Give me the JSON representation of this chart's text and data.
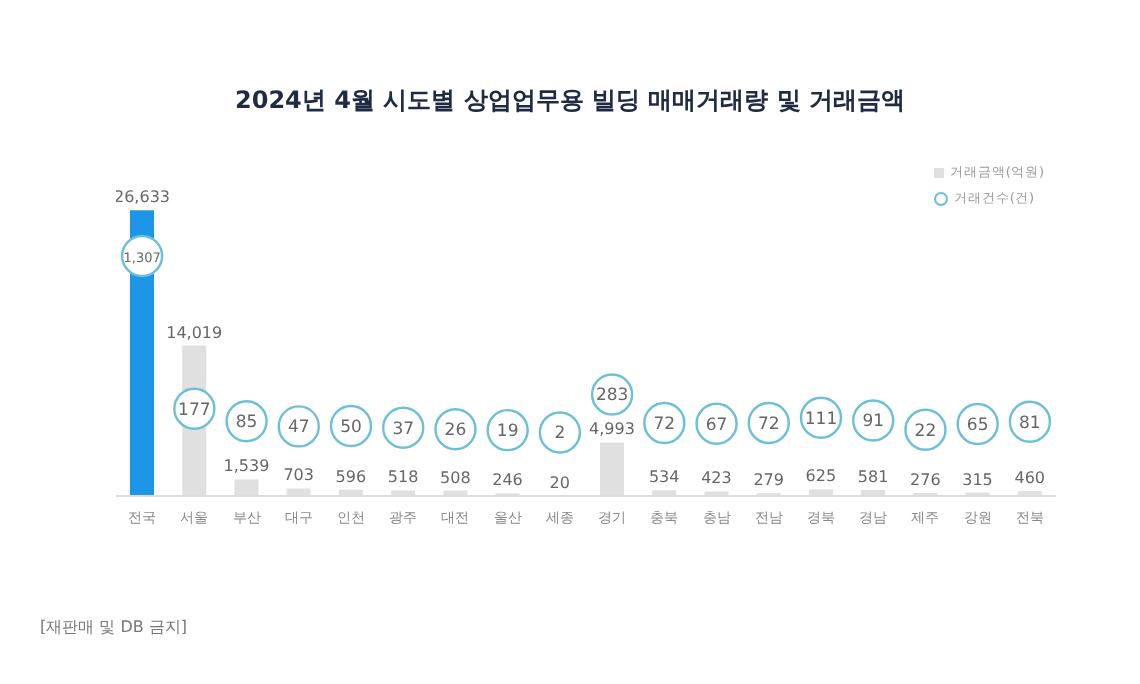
{
  "chart_data": {
    "type": "bar",
    "title": "2024년 4월 시도별 상업업무용 빌딩 매매거래량 및 거래금액",
    "categories": [
      "전국",
      "서울",
      "부산",
      "대구",
      "인천",
      "광주",
      "대전",
      "울산",
      "세종",
      "경기",
      "충북",
      "충남",
      "전남",
      "경북",
      "경남",
      "제주",
      "강원",
      "전북"
    ],
    "series": [
      {
        "name": "거래금액(억원)",
        "color": "#e0e0e0",
        "colors": [
          "#1e96e8",
          "#e0e0e0",
          "#e0e0e0",
          "#e0e0e0",
          "#e0e0e0",
          "#e0e0e0",
          "#e0e0e0",
          "#e0e0e0",
          "#e0e0e0",
          "#e0e0e0",
          "#e0e0e0",
          "#e0e0e0",
          "#e0e0e0",
          "#e0e0e0",
          "#e0e0e0",
          "#e0e0e0",
          "#e0e0e0",
          "#e0e0e0"
        ],
        "values": [
          26633,
          14019,
          1539,
          703,
          596,
          518,
          508,
          246,
          20,
          4993,
          534,
          423,
          279,
          625,
          581,
          276,
          315,
          460
        ],
        "value_labels": [
          "26,633",
          "14,019",
          "1,539",
          "703",
          "596",
          "518",
          "508",
          "246",
          "20",
          "4,993",
          "534",
          "423",
          "279",
          "625",
          "581",
          "276",
          "315",
          "460"
        ]
      },
      {
        "name": "거래건수(건)",
        "type": "scatter",
        "axis": "y2",
        "color": "#6cbfd9",
        "values": [
          1307,
          177,
          85,
          47,
          50,
          37,
          26,
          19,
          2,
          283,
          72,
          67,
          72,
          111,
          91,
          22,
          65,
          81
        ],
        "value_labels": [
          "1,307",
          "177",
          "85",
          "47",
          "50",
          "37",
          "26",
          "19",
          "2",
          "283",
          "72",
          "67",
          "72",
          "111",
          "91",
          "22",
          "65",
          "81"
        ]
      }
    ],
    "tick_labels": "x",
    "legend": "top right",
    "marker": "circle",
    "annotations": [
      "[재판매 및 DB 금지]"
    ]
  }
}
